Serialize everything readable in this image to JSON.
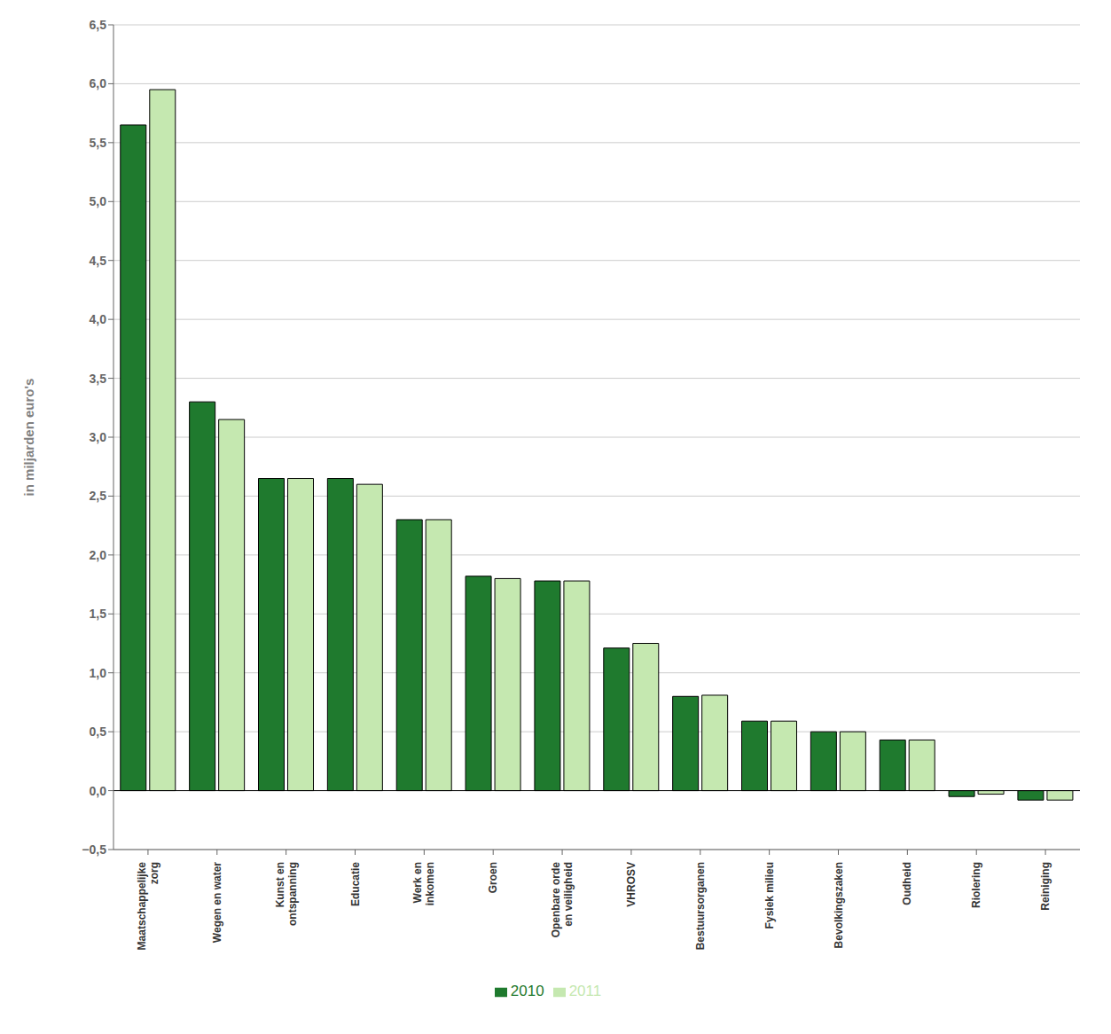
{
  "chart_data": {
    "type": "bar",
    "categories": [
      "Maatschappelijke\nzorg",
      "Wegen en water",
      "Kunst en\nontspanning",
      "Educatie",
      "Werk en\ninkomen",
      "Groen",
      "Openbare orde\nen veiligheid",
      "VHROSV",
      "Bestuursorganen",
      "Fysiek milieu",
      "Bevolkingszaken",
      "Oudheid",
      "Riolering",
      "Reiniging"
    ],
    "series": [
      {
        "name": "2010",
        "color": "#1f7a2e",
        "values": [
          5.65,
          3.3,
          2.65,
          2.65,
          2.3,
          1.82,
          1.78,
          1.21,
          0.8,
          0.59,
          0.5,
          0.43,
          -0.05,
          -0.08
        ]
      },
      {
        "name": "2011",
        "color": "#c5e8b0",
        "values": [
          5.95,
          3.15,
          2.65,
          2.6,
          2.3,
          1.8,
          1.78,
          1.25,
          0.81,
          0.59,
          0.5,
          0.43,
          -0.03,
          -0.08
        ]
      }
    ],
    "ylabel": "in miljarden euro's",
    "ylim": [
      -0.5,
      6.5
    ],
    "yticks": [
      {
        "value": -0.5,
        "label": "−0,5"
      },
      {
        "value": 0.0,
        "label": "0,0"
      },
      {
        "value": 0.5,
        "label": "0,5"
      },
      {
        "value": 1.0,
        "label": "1,0"
      },
      {
        "value": 1.5,
        "label": "1,5"
      },
      {
        "value": 2.0,
        "label": "2,0"
      },
      {
        "value": 2.5,
        "label": "2,5"
      },
      {
        "value": 3.0,
        "label": "3,0"
      },
      {
        "value": 3.5,
        "label": "3,5"
      },
      {
        "value": 4.0,
        "label": "4,0"
      },
      {
        "value": 4.5,
        "label": "4,5"
      },
      {
        "value": 5.0,
        "label": "5,0"
      },
      {
        "value": 5.5,
        "label": "5,5"
      },
      {
        "value": 6.0,
        "label": "6,0"
      },
      {
        "value": 6.5,
        "label": "6,5"
      }
    ],
    "grid": true,
    "legend": "bottom"
  }
}
